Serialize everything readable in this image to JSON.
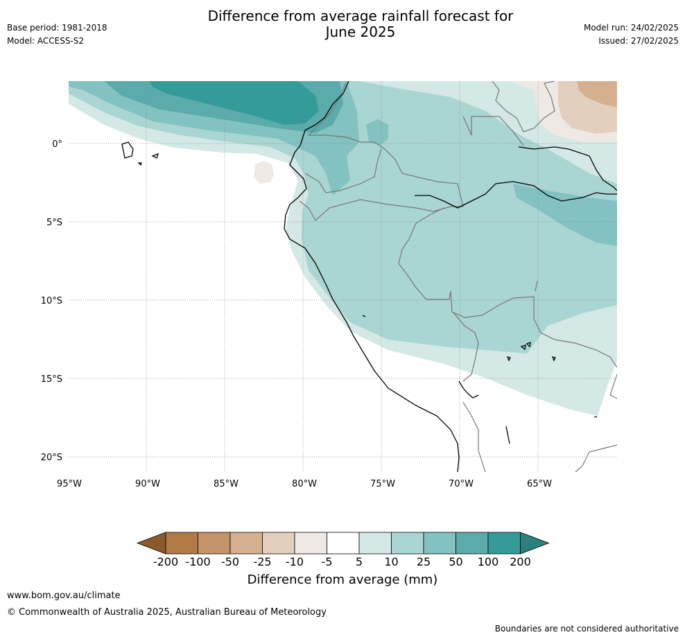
{
  "header": {
    "title_line1": "Difference from average rainfall forecast for",
    "title_line2": "June 2025",
    "base_period": "Base period: 1981-2018",
    "model": "Model: ACCESS-S2",
    "model_run": "Model run: 24/02/2025",
    "issued": "Issued: 27/02/2025"
  },
  "map": {
    "lat_ticks": [
      "0°",
      "5°S",
      "10°S",
      "15°S",
      "20°S"
    ],
    "lon_ticks": [
      "95°W",
      "90°W",
      "85°W",
      "80°W",
      "75°W",
      "70°W",
      "65°W"
    ]
  },
  "colorbar": {
    "labels": [
      "-200",
      "-100",
      "-50",
      "-25",
      "-10",
      "-5",
      "5",
      "10",
      "25",
      "50",
      "100",
      "200"
    ],
    "colors": [
      "#8c5a2a",
      "#b07a45",
      "#c4946a",
      "#d4b090",
      "#e3cfbd",
      "#efe9e6",
      "#ffffff",
      "#d4e8e6",
      "#a9d5d3",
      "#82c2c0",
      "#5aabaa",
      "#349b98",
      "#2b7f7d"
    ],
    "title": "Difference from average (mm)"
  },
  "footer": {
    "url": "www.bom.gov.au/climate",
    "copyright": "© Commonwealth of Australia 2025, Australian Bureau of Meteorology",
    "disclaimer": "Boundaries are not considered authoritative"
  }
}
